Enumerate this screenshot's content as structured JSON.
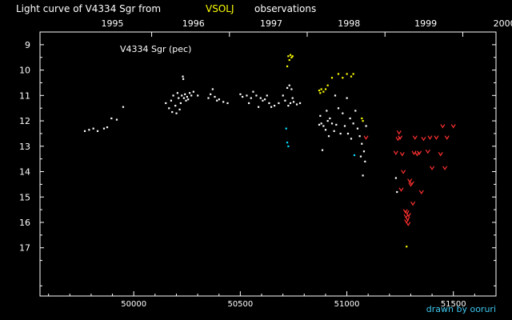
{
  "title": {
    "part1": "Light curve of V4334 Sgr from",
    "highlight": "VSOLJ",
    "part2": "observations",
    "highlight_color": "#ffff00"
  },
  "credit": "drawn by ooruri",
  "chart_data": {
    "type": "scatter",
    "title": "Light curve of V4334 Sgr from VSOLJ observations",
    "annotation": "V4334 Sgr (pec)",
    "xlim": [
      49560,
      51700
    ],
    "ylim": [
      8.5,
      18.9
    ],
    "y_inverted": true,
    "x_ticks": [
      50000,
      50500,
      51000,
      51500
    ],
    "x_tick_labels": [
      "50000",
      "50500",
      "51000",
      "51500"
    ],
    "y_ticks": [
      9,
      10,
      11,
      12,
      13,
      14,
      15,
      16,
      17
    ],
    "y_tick_labels": [
      "9",
      "10",
      "11",
      "12",
      "13",
      "14",
      "15",
      "16",
      "17"
    ],
    "year_ticks": [
      50084,
      50449,
      50814,
      51179,
      51544
    ],
    "year_labels": [
      "1995",
      "1996",
      "1997",
      "1998",
      "1999",
      "2000"
    ],
    "year_label_positions": [
      49900,
      50280,
      50645,
      51010,
      51370,
      51740
    ],
    "grid": false,
    "series": [
      {
        "color": "#ffffff",
        "marker": "dot",
        "points": [
          [
            49770,
            12.4
          ],
          [
            49790,
            12.35
          ],
          [
            49810,
            12.3
          ],
          [
            49830,
            12.4
          ],
          [
            49860,
            12.3
          ],
          [
            49875,
            12.25
          ],
          [
            49895,
            11.9
          ],
          [
            49920,
            11.95
          ],
          [
            49950,
            11.45
          ],
          [
            50150,
            11.3
          ],
          [
            50165,
            11.5
          ],
          [
            50175,
            11.2
          ],
          [
            50180,
            11.65
          ],
          [
            50185,
            11.0
          ],
          [
            50195,
            11.4
          ],
          [
            50200,
            11.7
          ],
          [
            50205,
            10.9
          ],
          [
            50210,
            11.1
          ],
          [
            50215,
            11.55
          ],
          [
            50220,
            11.3
          ],
          [
            50225,
            11.0
          ],
          [
            50230,
            10.25
          ],
          [
            50232,
            10.35
          ],
          [
            50235,
            11.1
          ],
          [
            50240,
            10.95
          ],
          [
            50245,
            11.2
          ],
          [
            50250,
            11.05
          ],
          [
            50255,
            11.15
          ],
          [
            50262,
            10.9
          ],
          [
            50270,
            11.0
          ],
          [
            50280,
            10.85
          ],
          [
            50300,
            11.0
          ],
          [
            50350,
            11.1
          ],
          [
            50360,
            10.95
          ],
          [
            50370,
            10.75
          ],
          [
            50380,
            11.05
          ],
          [
            50390,
            11.2
          ],
          [
            50400,
            11.15
          ],
          [
            50420,
            11.25
          ],
          [
            50440,
            11.3
          ],
          [
            50500,
            10.95
          ],
          [
            50510,
            11.05
          ],
          [
            50530,
            11.0
          ],
          [
            50540,
            11.3
          ],
          [
            50550,
            11.1
          ],
          [
            50560,
            10.85
          ],
          [
            50575,
            11.0
          ],
          [
            50585,
            11.45
          ],
          [
            50595,
            11.1
          ],
          [
            50605,
            11.2
          ],
          [
            50615,
            11.15
          ],
          [
            50625,
            11.0
          ],
          [
            50635,
            11.3
          ],
          [
            50645,
            11.45
          ],
          [
            50660,
            11.4
          ],
          [
            50680,
            11.3
          ],
          [
            50700,
            11.0
          ],
          [
            50710,
            11.2
          ],
          [
            50720,
            10.7
          ],
          [
            50725,
            11.4
          ],
          [
            50730,
            10.6
          ],
          [
            50735,
            11.3
          ],
          [
            50740,
            10.75
          ],
          [
            50745,
            11.1
          ],
          [
            50750,
            11.25
          ],
          [
            50765,
            11.35
          ],
          [
            50780,
            11.3
          ],
          [
            50870,
            12.15
          ],
          [
            50875,
            11.8
          ],
          [
            50880,
            12.1
          ],
          [
            50885,
            13.15
          ],
          [
            50890,
            12.2
          ],
          [
            50900,
            12.35
          ],
          [
            50905,
            11.6
          ],
          [
            50910,
            12.0
          ],
          [
            50915,
            12.6
          ],
          [
            50920,
            11.9
          ],
          [
            50930,
            12.1
          ],
          [
            50940,
            12.4
          ],
          [
            50945,
            11.0
          ],
          [
            50950,
            12.15
          ],
          [
            50960,
            11.5
          ],
          [
            50970,
            12.5
          ],
          [
            50980,
            11.7
          ],
          [
            50990,
            12.2
          ],
          [
            51000,
            11.1
          ],
          [
            51005,
            12.5
          ],
          [
            51015,
            11.9
          ],
          [
            51020,
            12.7
          ],
          [
            51030,
            12.1
          ],
          [
            51040,
            11.6
          ],
          [
            51050,
            12.3
          ],
          [
            51060,
            12.6
          ],
          [
            51065,
            13.4
          ],
          [
            51070,
            12.9
          ],
          [
            51075,
            14.15
          ],
          [
            51080,
            13.2
          ],
          [
            51085,
            13.6
          ],
          [
            51090,
            12.2
          ],
          [
            51230,
            14.25
          ],
          [
            51235,
            14.8
          ]
        ]
      },
      {
        "color": "#ffff00",
        "marker": "dot",
        "points": [
          [
            50720,
            9.85
          ],
          [
            50725,
            9.45
          ],
          [
            50730,
            9.6
          ],
          [
            50735,
            9.4
          ],
          [
            50740,
            9.5
          ],
          [
            50745,
            9.45
          ],
          [
            50870,
            10.8
          ],
          [
            50875,
            10.9
          ],
          [
            50880,
            10.75
          ],
          [
            50890,
            10.85
          ],
          [
            50900,
            10.75
          ],
          [
            50910,
            10.6
          ],
          [
            50930,
            10.3
          ],
          [
            50960,
            10.15
          ],
          [
            50980,
            10.3
          ],
          [
            51000,
            10.15
          ],
          [
            51020,
            10.25
          ],
          [
            51030,
            10.15
          ],
          [
            51070,
            11.9
          ],
          [
            51075,
            12.0
          ],
          [
            51280,
            16.95
          ]
        ]
      },
      {
        "color": "#00e0ff",
        "marker": "dot",
        "points": [
          [
            50715,
            12.3
          ],
          [
            50720,
            12.85
          ],
          [
            50725,
            13.0
          ],
          [
            51035,
            13.35
          ]
        ]
      },
      {
        "color": "#ff3030",
        "marker": "v",
        "points": [
          [
            51090,
            12.65
          ],
          [
            51230,
            13.25
          ],
          [
            51240,
            12.7
          ],
          [
            51245,
            12.45
          ],
          [
            51250,
            12.65
          ],
          [
            51255,
            14.7
          ],
          [
            51260,
            13.3
          ],
          [
            51265,
            14.0
          ],
          [
            51275,
            15.55
          ],
          [
            51278,
            15.75
          ],
          [
            51280,
            15.95
          ],
          [
            51282,
            15.6
          ],
          [
            51285,
            15.85
          ],
          [
            51288,
            16.05
          ],
          [
            51290,
            15.7
          ],
          [
            51295,
            14.35
          ],
          [
            51300,
            14.5
          ],
          [
            51305,
            14.45
          ],
          [
            51310,
            15.25
          ],
          [
            51315,
            13.25
          ],
          [
            51320,
            12.65
          ],
          [
            51330,
            13.3
          ],
          [
            51340,
            13.25
          ],
          [
            51350,
            14.8
          ],
          [
            51360,
            12.7
          ],
          [
            51380,
            13.2
          ],
          [
            51390,
            12.65
          ],
          [
            51400,
            13.85
          ],
          [
            51420,
            12.65
          ],
          [
            51440,
            13.3
          ],
          [
            51450,
            12.2
          ],
          [
            51460,
            13.85
          ],
          [
            51470,
            12.65
          ],
          [
            51500,
            12.2
          ]
        ]
      }
    ]
  }
}
